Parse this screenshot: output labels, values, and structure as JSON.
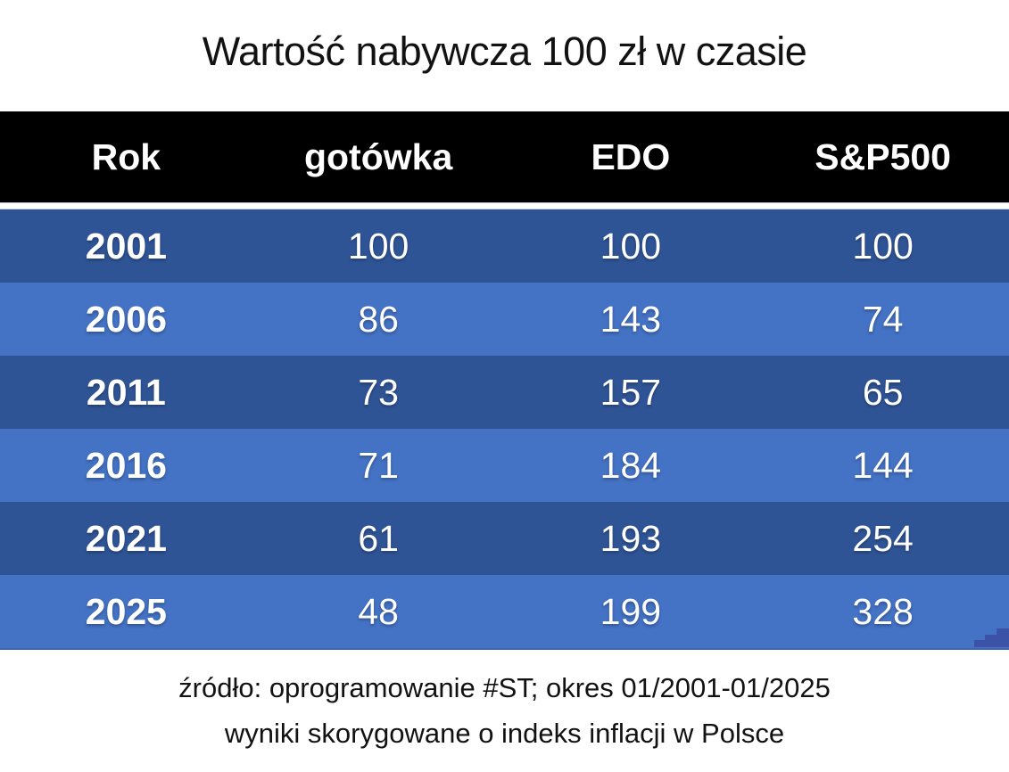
{
  "title": "Wartość nabywcza 100 zł w czasie",
  "table": {
    "columns": [
      "Rok",
      "gotówka",
      "EDO",
      "S&P500"
    ],
    "rows": [
      {
        "year": "2001",
        "values": [
          "100",
          "100",
          "100"
        ]
      },
      {
        "year": "2006",
        "values": [
          "86",
          "143",
          "74"
        ]
      },
      {
        "year": "2011",
        "values": [
          "73",
          "157",
          "65"
        ]
      },
      {
        "year": "2016",
        "values": [
          "71",
          "184",
          "144"
        ]
      },
      {
        "year": "2021",
        "values": [
          "61",
          "193",
          "254"
        ]
      },
      {
        "year": "2025",
        "values": [
          "48",
          "199",
          "328"
        ]
      }
    ]
  },
  "footer": {
    "line1": "źródło: oprogramowanie #ST; okres 01/2001-01/2025",
    "line2": "wyniki skorygowane o indeks inflacji w Polsce"
  },
  "colors": {
    "header_bg": "#000000",
    "row_dark": "#2F5496",
    "row_light": "#4472C4",
    "text_on_rows": "#FFFFFF",
    "watermark": "#3B4FA3"
  },
  "chart_data": {
    "type": "table",
    "title": "Wartość nabywcza 100 zł w czasie",
    "categories": [
      "2001",
      "2006",
      "2011",
      "2016",
      "2021",
      "2025"
    ],
    "series": [
      {
        "name": "gotówka",
        "values": [
          100,
          86,
          73,
          71,
          61,
          48
        ]
      },
      {
        "name": "EDO",
        "values": [
          100,
          143,
          157,
          184,
          193,
          199
        ]
      },
      {
        "name": "S&P500",
        "values": [
          100,
          74,
          65,
          144,
          254,
          328
        ]
      }
    ],
    "notes": [
      "źródło: oprogramowanie #ST; okres 01/2001-01/2025",
      "wyniki skorygowane o indeks inflacji w Polsce"
    ]
  }
}
